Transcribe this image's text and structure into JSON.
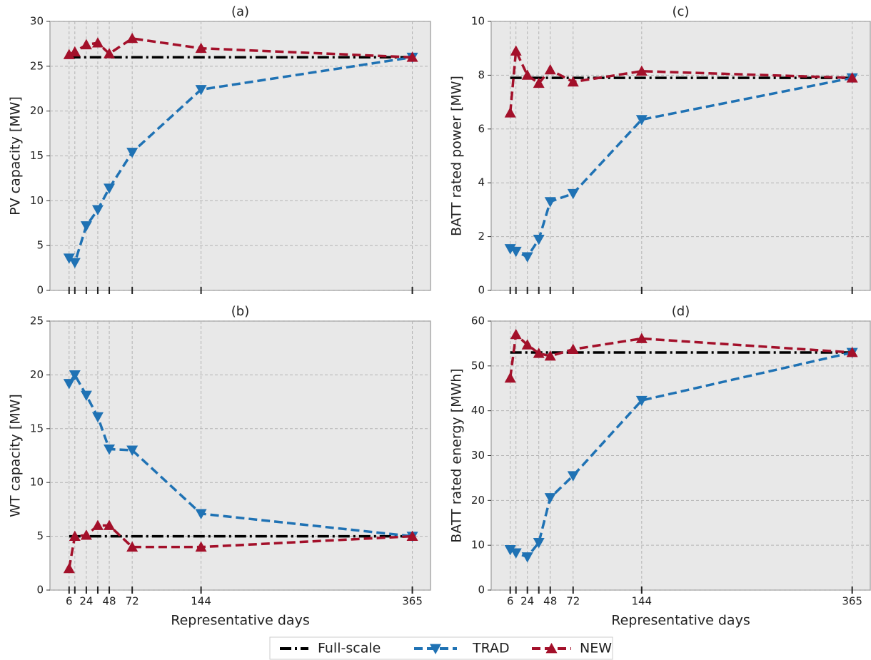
{
  "chart_data": [
    {
      "type": "line",
      "title": "(a)",
      "ylabel": "PV capacity [MW]",
      "x": [
        6,
        12,
        24,
        36,
        48,
        72,
        144,
        365
      ],
      "xlim": [
        -14,
        384
      ],
      "xticks": [
        6,
        24,
        48,
        72,
        144,
        365
      ],
      "minor_xticks": [
        12,
        36
      ],
      "ylim": [
        0,
        30
      ],
      "yticks": [
        0,
        5,
        10,
        15,
        20,
        25,
        30
      ],
      "grid": true,
      "series": [
        {
          "name": "Full-scale",
          "color": "#000000",
          "linestyle": "dashdot",
          "marker": null,
          "values": [
            26,
            26,
            26,
            26,
            26,
            26,
            26,
            26
          ]
        },
        {
          "name": "TRAD",
          "color": "#1f72b4",
          "linestyle": "dashed",
          "marker": "v",
          "values": [
            3.6,
            3.1,
            7.2,
            9.0,
            11.4,
            15.4,
            22.4,
            26.0
          ]
        },
        {
          "name": "NEW",
          "color": "#a3102a",
          "linestyle": "dashed",
          "marker": "^",
          "values": [
            26.3,
            26.6,
            27.4,
            27.6,
            26.4,
            28.1,
            27.0,
            26.0
          ]
        }
      ]
    },
    {
      "type": "line",
      "title": "(b)",
      "ylabel": "WT capacity [MW]",
      "xlabel": "Representative days",
      "x": [
        6,
        12,
        24,
        36,
        48,
        72,
        144,
        365
      ],
      "xlim": [
        -14,
        384
      ],
      "xticks": [
        6,
        24,
        48,
        72,
        144,
        365
      ],
      "minor_xticks": [
        12,
        36
      ],
      "ylim": [
        0,
        25
      ],
      "yticks": [
        0,
        5,
        10,
        15,
        20,
        25
      ],
      "grid": true,
      "series": [
        {
          "name": "Full-scale",
          "color": "#000000",
          "linestyle": "dashdot",
          "marker": null,
          "values": [
            5,
            5,
            5,
            5,
            5,
            5,
            5,
            5
          ]
        },
        {
          "name": "TRAD",
          "color": "#1f72b4",
          "linestyle": "dashed",
          "marker": "v",
          "values": [
            19.2,
            20.0,
            18.1,
            16.1,
            13.1,
            13.0,
            7.1,
            5.0
          ]
        },
        {
          "name": "NEW",
          "color": "#a3102a",
          "linestyle": "dashed",
          "marker": "^",
          "values": [
            2.0,
            5.0,
            5.1,
            6.0,
            6.0,
            4.0,
            4.0,
            5.0
          ]
        }
      ]
    },
    {
      "type": "line",
      "title": "(c)",
      "ylabel": "BATT rated power [MW]",
      "x": [
        6,
        12,
        24,
        36,
        48,
        72,
        144,
        365
      ],
      "xlim": [
        -14,
        384
      ],
      "xticks": [
        6,
        24,
        48,
        72,
        144,
        365
      ],
      "minor_xticks": [
        12,
        36
      ],
      "ylim": [
        0,
        10
      ],
      "yticks": [
        0,
        2,
        4,
        6,
        8,
        10
      ],
      "grid": true,
      "series": [
        {
          "name": "Full-scale",
          "color": "#000000",
          "linestyle": "dashdot",
          "marker": null,
          "values": [
            7.9,
            7.9,
            7.9,
            7.9,
            7.9,
            7.9,
            7.9,
            7.9
          ]
        },
        {
          "name": "TRAD",
          "color": "#1f72b4",
          "linestyle": "dashed",
          "marker": "v",
          "values": [
            1.55,
            1.45,
            1.25,
            1.9,
            3.3,
            3.6,
            6.35,
            7.9
          ]
        },
        {
          "name": "NEW",
          "color": "#a3102a",
          "linestyle": "dashed",
          "marker": "^",
          "values": [
            6.6,
            8.9,
            8.0,
            7.7,
            8.2,
            7.75,
            8.15,
            7.9
          ]
        }
      ]
    },
    {
      "type": "line",
      "title": "(d)",
      "ylabel": "BATT rated energy [MWh]",
      "xlabel": "Representative days",
      "x": [
        6,
        12,
        24,
        36,
        48,
        72,
        144,
        365
      ],
      "xlim": [
        -14,
        384
      ],
      "xticks": [
        6,
        24,
        48,
        72,
        144,
        365
      ],
      "minor_xticks": [
        12,
        36
      ],
      "ylim": [
        0,
        60
      ],
      "yticks": [
        0,
        10,
        20,
        30,
        40,
        50,
        60
      ],
      "grid": true,
      "series": [
        {
          "name": "Full-scale",
          "color": "#000000",
          "linestyle": "dashdot",
          "marker": null,
          "values": [
            53,
            53,
            53,
            53,
            53,
            53,
            53,
            53
          ]
        },
        {
          "name": "TRAD",
          "color": "#1f72b4",
          "linestyle": "dashed",
          "marker": "v",
          "values": [
            9.0,
            8.3,
            7.4,
            10.6,
            20.6,
            25.5,
            42.3,
            53.0
          ]
        },
        {
          "name": "NEW",
          "color": "#a3102a",
          "linestyle": "dashed",
          "marker": "^",
          "values": [
            47.3,
            57.0,
            54.7,
            52.8,
            52.2,
            53.7,
            56.1,
            53.0
          ]
        }
      ]
    }
  ]
}
